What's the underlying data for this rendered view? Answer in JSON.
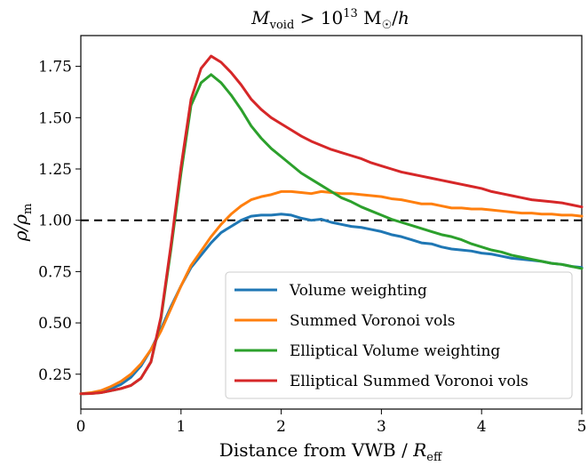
{
  "chart_data": {
    "type": "line",
    "title": "M_void > 10^13 M_☉/h",
    "title_parts": {
      "m": "M",
      "void": "void",
      "gt": " > 10",
      "exp": "13",
      "msun": " M",
      "sun": "☉",
      "slash": "/",
      "h": "h"
    },
    "xlabel": "Distance from VWB / R_eff",
    "xlabel_parts": {
      "text": "Distance from VWB / ",
      "r": "R",
      "eff": "eff"
    },
    "ylabel": "ρ/ρ_m",
    "ylabel_parts": {
      "rho": "ρ/ρ",
      "m": "m"
    },
    "xlim": [
      0,
      5
    ],
    "ylim": [
      0.08,
      1.9
    ],
    "xticks": [
      0,
      1,
      2,
      3,
      4,
      5
    ],
    "xtick_labels": [
      "0",
      "1",
      "2",
      "3",
      "4",
      "5"
    ],
    "yticks": [
      0.25,
      0.5,
      0.75,
      1.0,
      1.25,
      1.5,
      1.75
    ],
    "ytick_labels": [
      "0.25",
      "0.50",
      "0.75",
      "1.00",
      "1.25",
      "1.50",
      "1.75"
    ],
    "reference_line": {
      "y": 1.0,
      "style": "dashed",
      "color": "#000000"
    },
    "grid": false,
    "legend_position": "lower-right",
    "x": [
      0.0,
      0.1,
      0.2,
      0.3,
      0.4,
      0.5,
      0.6,
      0.7,
      0.8,
      0.9,
      1.0,
      1.1,
      1.2,
      1.3,
      1.4,
      1.5,
      1.6,
      1.7,
      1.8,
      1.9,
      2.0,
      2.1,
      2.2,
      2.3,
      2.4,
      2.5,
      2.6,
      2.7,
      2.8,
      2.9,
      3.0,
      3.1,
      3.2,
      3.3,
      3.4,
      3.5,
      3.6,
      3.7,
      3.8,
      3.9,
      4.0,
      4.1,
      4.2,
      4.3,
      4.4,
      4.5,
      4.6,
      4.7,
      4.8,
      4.9,
      5.0
    ],
    "series": [
      {
        "name": "Volume weighting",
        "color": "#1f77b4",
        "values": [
          0.155,
          0.157,
          0.165,
          0.18,
          0.2,
          0.235,
          0.29,
          0.37,
          0.47,
          0.58,
          0.68,
          0.77,
          0.83,
          0.89,
          0.94,
          0.97,
          1.0,
          1.02,
          1.025,
          1.025,
          1.03,
          1.025,
          1.01,
          1.0,
          1.005,
          0.99,
          0.98,
          0.97,
          0.965,
          0.955,
          0.945,
          0.93,
          0.92,
          0.905,
          0.89,
          0.885,
          0.87,
          0.86,
          0.855,
          0.85,
          0.84,
          0.835,
          0.825,
          0.815,
          0.81,
          0.805,
          0.8,
          0.79,
          0.785,
          0.775,
          0.77
        ]
      },
      {
        "name": "Summed Voronoi vols",
        "color": "#ff7f0e",
        "values": [
          0.155,
          0.16,
          0.17,
          0.19,
          0.215,
          0.25,
          0.3,
          0.37,
          0.46,
          0.57,
          0.68,
          0.78,
          0.85,
          0.92,
          0.98,
          1.03,
          1.07,
          1.1,
          1.115,
          1.125,
          1.14,
          1.14,
          1.135,
          1.13,
          1.14,
          1.135,
          1.13,
          1.13,
          1.125,
          1.12,
          1.115,
          1.105,
          1.1,
          1.09,
          1.08,
          1.08,
          1.07,
          1.06,
          1.06,
          1.055,
          1.055,
          1.05,
          1.045,
          1.04,
          1.035,
          1.035,
          1.03,
          1.03,
          1.025,
          1.025,
          1.02
        ]
      },
      {
        "name": "Elliptical Volume weighting",
        "color": "#2ca02c",
        "values": [
          0.155,
          0.156,
          0.16,
          0.17,
          0.18,
          0.195,
          0.23,
          0.31,
          0.52,
          0.86,
          1.23,
          1.56,
          1.67,
          1.71,
          1.67,
          1.61,
          1.54,
          1.46,
          1.4,
          1.35,
          1.31,
          1.27,
          1.23,
          1.2,
          1.17,
          1.14,
          1.11,
          1.09,
          1.065,
          1.045,
          1.025,
          1.005,
          0.99,
          0.975,
          0.96,
          0.945,
          0.93,
          0.92,
          0.905,
          0.885,
          0.87,
          0.855,
          0.845,
          0.83,
          0.82,
          0.81,
          0.8,
          0.79,
          0.785,
          0.775,
          0.765
        ]
      },
      {
        "name": "Elliptical Summed Voronoi vols",
        "color": "#d62728",
        "values": [
          0.155,
          0.156,
          0.16,
          0.17,
          0.18,
          0.195,
          0.23,
          0.31,
          0.53,
          0.88,
          1.26,
          1.59,
          1.74,
          1.8,
          1.77,
          1.72,
          1.66,
          1.59,
          1.54,
          1.5,
          1.47,
          1.44,
          1.41,
          1.385,
          1.365,
          1.345,
          1.33,
          1.315,
          1.3,
          1.28,
          1.265,
          1.25,
          1.235,
          1.225,
          1.215,
          1.205,
          1.195,
          1.185,
          1.175,
          1.165,
          1.155,
          1.14,
          1.13,
          1.12,
          1.11,
          1.1,
          1.095,
          1.09,
          1.085,
          1.075,
          1.065
        ]
      }
    ]
  }
}
